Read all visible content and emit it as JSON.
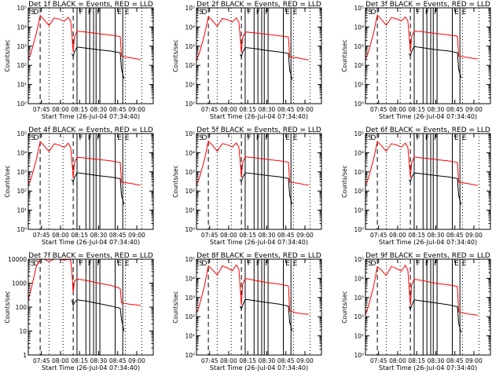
{
  "figure": {
    "xlabel": "Start Time (26-Jul-04 07:34:40)",
    "ylabel": "Counts/sec"
  },
  "chart_data": [
    {
      "type": "line",
      "title": "Det 1f BLACK = Events, RED = LLD",
      "ylim": [
        1,
        100000
      ],
      "ytick_style": "exp",
      "xticks": [
        "07:45",
        "08:00",
        "08:15",
        "08:30",
        "08:45",
        "09:00"
      ],
      "xlim": [
        "07:34:40",
        "09:13:00"
      ],
      "series": [
        {
          "color": "#ff0000",
          "x": [
            "07:34:40",
            "07:37",
            "07:41",
            "07:44",
            "07:47",
            "07:51",
            "07:55",
            "07:59",
            "08:03",
            "08:06",
            "08:08",
            "08:09",
            "08:10",
            "08:11",
            "08:13",
            "08:20",
            "08:30",
            "08:40",
            "08:47",
            "08:48",
            "08:55",
            "09:03"
          ],
          "y": [
            200,
            500,
            4500,
            40000,
            25000,
            12000,
            30000,
            26000,
            20000,
            32000,
            20000,
            4000,
            500,
            3000,
            6000,
            5500,
            4500,
            3800,
            3200,
            300,
            250,
            200
          ]
        },
        {
          "color": "#000000",
          "x": [
            "08:09",
            "08:10",
            "08:11",
            "08:13",
            "08:20",
            "08:30",
            "08:40",
            "08:47",
            "08:48",
            "08:50"
          ],
          "y": [
            400,
            300,
            500,
            900,
            800,
            650,
            550,
            450,
            60,
            20
          ]
        }
      ]
    },
    {
      "type": "line",
      "title": "Det 2f BLACK = Events, RED = LLD",
      "ylim": [
        1,
        100000
      ],
      "ytick_style": "exp",
      "xticks": [
        "07:45",
        "08:00",
        "08:15",
        "08:30",
        "08:45",
        "09:00"
      ],
      "xlim": [
        "07:34:40",
        "09:13:00"
      ],
      "series": [
        {
          "color": "#ff0000",
          "x": [
            "07:34:40",
            "07:37",
            "07:41",
            "07:44",
            "07:47",
            "07:51",
            "07:55",
            "07:59",
            "08:03",
            "08:06",
            "08:08",
            "08:09",
            "08:10",
            "08:11",
            "08:13",
            "08:20",
            "08:30",
            "08:40",
            "08:47",
            "08:48",
            "08:55",
            "09:03"
          ],
          "y": [
            180,
            450,
            4000,
            35000,
            22000,
            11000,
            28000,
            24000,
            18000,
            30000,
            18000,
            3500,
            450,
            2800,
            5500,
            5000,
            4200,
            3500,
            3000,
            280,
            240,
            190
          ]
        },
        {
          "color": "#000000",
          "x": [
            "08:09",
            "08:10",
            "08:11",
            "08:13",
            "08:20",
            "08:30",
            "08:40",
            "08:47",
            "08:48",
            "08:50"
          ],
          "y": [
            380,
            280,
            480,
            850,
            750,
            600,
            500,
            420,
            55,
            18
          ]
        }
      ]
    },
    {
      "type": "line",
      "title": "Det 3f BLACK = Events, RED = LLD",
      "ylim": [
        1,
        100000
      ],
      "ytick_style": "exp",
      "xticks": [
        "07:45",
        "08:00",
        "08:15",
        "08:30",
        "08:45",
        "09:00"
      ],
      "xlim": [
        "07:34:40",
        "09:13:00"
      ],
      "series": [
        {
          "color": "#ff0000",
          "x": [
            "07:34:40",
            "07:37",
            "07:41",
            "07:44",
            "07:47",
            "07:51",
            "07:55",
            "07:59",
            "08:03",
            "08:06",
            "08:08",
            "08:09",
            "08:10",
            "08:11",
            "08:13",
            "08:20",
            "08:30",
            "08:40",
            "08:47",
            "08:48",
            "08:55",
            "09:03"
          ],
          "y": [
            200,
            500,
            4500,
            42000,
            26000,
            12500,
            31000,
            27000,
            21000,
            33000,
            21000,
            4000,
            500,
            3000,
            6200,
            5600,
            4600,
            3900,
            3300,
            300,
            260,
            210
          ]
        },
        {
          "color": "#000000",
          "x": [
            "08:09",
            "08:10",
            "08:11",
            "08:13",
            "08:20",
            "08:30",
            "08:40",
            "08:47",
            "08:48",
            "08:50"
          ],
          "y": [
            420,
            310,
            520,
            950,
            820,
            660,
            560,
            460,
            62,
            22
          ]
        }
      ]
    },
    {
      "type": "line",
      "title": "Det 4f BLACK = Events, RED = LLD",
      "ylim": [
        1,
        100000
      ],
      "ytick_style": "exp",
      "xticks": [
        "07:45",
        "08:00",
        "08:15",
        "08:30",
        "08:45",
        "09:00"
      ],
      "xlim": [
        "07:34:40",
        "09:13:00"
      ],
      "series": [
        {
          "color": "#ff0000",
          "x": [
            "07:34:40",
            "07:37",
            "07:41",
            "07:44",
            "07:47",
            "07:51",
            "07:55",
            "07:59",
            "08:03",
            "08:06",
            "08:08",
            "08:09",
            "08:10",
            "08:11",
            "08:13",
            "08:20",
            "08:30",
            "08:40",
            "08:47",
            "08:48",
            "08:55",
            "09:03"
          ],
          "y": [
            190,
            480,
            4200,
            38000,
            24000,
            11500,
            29000,
            25000,
            19000,
            31000,
            19000,
            3800,
            480,
            2900,
            5800,
            5200,
            4400,
            3700,
            3100,
            290,
            250,
            200
          ]
        },
        {
          "color": "#000000",
          "x": [
            "08:09",
            "08:10",
            "08:11",
            "08:13",
            "08:20",
            "08:30",
            "08:40",
            "08:47",
            "08:48",
            "08:50"
          ],
          "y": [
            400,
            300,
            500,
            900,
            780,
            630,
            530,
            440,
            58,
            20
          ]
        }
      ]
    },
    {
      "type": "line",
      "title": "Det 5f BLACK = Events, RED = LLD",
      "ylim": [
        1,
        100000
      ],
      "ytick_style": "exp",
      "xticks": [
        "07:45",
        "08:00",
        "08:15",
        "08:30",
        "08:45",
        "09:00"
      ],
      "xlim": [
        "07:34:40",
        "09:13:00"
      ],
      "series": [
        {
          "color": "#ff0000",
          "x": [
            "07:34:40",
            "07:37",
            "07:41",
            "07:44",
            "07:47",
            "07:51",
            "07:55",
            "07:59",
            "08:03",
            "08:06",
            "08:08",
            "08:09",
            "08:10",
            "08:11",
            "08:13",
            "08:20",
            "08:30",
            "08:40",
            "08:47",
            "08:48",
            "08:55",
            "09:03"
          ],
          "y": [
            200,
            500,
            4400,
            40000,
            25000,
            12000,
            30000,
            26000,
            20000,
            32000,
            20000,
            4000,
            500,
            3000,
            6000,
            5500,
            4500,
            3800,
            3200,
            300,
            250,
            200
          ]
        },
        {
          "color": "#000000",
          "x": [
            "08:09",
            "08:10",
            "08:11",
            "08:13",
            "08:20",
            "08:30",
            "08:40",
            "08:47",
            "08:48",
            "08:50"
          ],
          "y": [
            410,
            300,
            500,
            900,
            800,
            650,
            550,
            450,
            60,
            20
          ]
        }
      ]
    },
    {
      "type": "line",
      "title": "Det 6f BLACK = Events, RED = LLD",
      "ylim": [
        1,
        100000
      ],
      "ytick_style": "exp",
      "xticks": [
        "07:45",
        "08:00",
        "08:15",
        "08:30",
        "08:45",
        "09:00"
      ],
      "xlim": [
        "07:34:40",
        "09:13:00"
      ],
      "series": [
        {
          "color": "#ff0000",
          "x": [
            "07:34:40",
            "07:37",
            "07:41",
            "07:44",
            "07:47",
            "07:51",
            "07:55",
            "07:59",
            "08:03",
            "08:06",
            "08:08",
            "08:09",
            "08:10",
            "08:11",
            "08:13",
            "08:20",
            "08:30",
            "08:40",
            "08:47",
            "08:48",
            "08:55",
            "09:03"
          ],
          "y": [
            190,
            470,
            4300,
            39000,
            24500,
            11800,
            29500,
            25500,
            19500,
            31500,
            19500,
            3900,
            490,
            2950,
            5900,
            5300,
            4400,
            3700,
            3100,
            290,
            245,
            195
          ]
        },
        {
          "color": "#000000",
          "x": [
            "08:09",
            "08:10",
            "08:11",
            "08:13",
            "08:20",
            "08:30",
            "08:40",
            "08:47",
            "08:48",
            "08:50"
          ],
          "y": [
            400,
            300,
            500,
            880,
            780,
            640,
            540,
            445,
            58,
            19
          ]
        }
      ]
    },
    {
      "type": "line",
      "title": "Det 7f BLACK = Events, RED = LLD",
      "ylim": [
        1,
        10000
      ],
      "ytick_style": "plain",
      "xticks": [
        "07:45",
        "08:00",
        "08:15",
        "08:30",
        "08:45",
        "09:00"
      ],
      "xlim": [
        "07:34:40",
        "09:13:00"
      ],
      "series": [
        {
          "color": "#ff0000",
          "x": [
            "07:34:40",
            "07:37",
            "07:41",
            "07:44",
            "07:47",
            "07:51",
            "07:55",
            "07:59",
            "08:03",
            "08:06",
            "08:08",
            "08:09",
            "08:10",
            "08:11",
            "08:13",
            "08:20",
            "08:30",
            "08:40",
            "08:47",
            "08:48",
            "08:55",
            "09:03"
          ],
          "y": [
            200,
            600,
            5000,
            10000,
            10000,
            8000,
            10000,
            10000,
            9000,
            10000,
            9000,
            3000,
            400,
            1200,
            1500,
            1300,
            1000,
            800,
            600,
            150,
            130,
            120
          ]
        },
        {
          "color": "#000000",
          "x": [
            "08:09",
            "08:10",
            "08:11",
            "08:13",
            "08:20",
            "08:30",
            "08:40",
            "08:47",
            "08:48",
            "08:50"
          ],
          "y": [
            200,
            120,
            150,
            200,
            180,
            140,
            110,
            90,
            30,
            10
          ]
        }
      ]
    },
    {
      "type": "line",
      "title": "Det 8f BLACK = Events, RED = LLD",
      "ylim": [
        1,
        100000
      ],
      "ytick_style": "exp",
      "xticks": [
        "07:45",
        "08:00",
        "08:15",
        "08:30",
        "08:45",
        "09:00"
      ],
      "xlim": [
        "07:34:40",
        "09:13:00"
      ],
      "series": [
        {
          "color": "#ff0000",
          "x": [
            "07:34:40",
            "07:37",
            "07:41",
            "07:44",
            "07:47",
            "07:51",
            "07:55",
            "07:59",
            "08:03",
            "08:06",
            "08:08",
            "08:09",
            "08:10",
            "08:11",
            "08:13",
            "08:20",
            "08:30",
            "08:40",
            "08:47",
            "08:48",
            "08:55",
            "09:03"
          ],
          "y": [
            150,
            400,
            4000,
            45000,
            30000,
            15000,
            45000,
            35000,
            25000,
            50000,
            30000,
            4000,
            400,
            5000,
            10000,
            8000,
            6000,
            5000,
            4000,
            200,
            150,
            130
          ]
        },
        {
          "color": "#000000",
          "x": [
            "08:09",
            "08:10",
            "08:11",
            "08:13",
            "08:20",
            "08:30",
            "08:40",
            "08:47",
            "08:48",
            "08:50"
          ],
          "y": [
            350,
            250,
            400,
            800,
            700,
            550,
            450,
            350,
            50,
            18
          ]
        }
      ]
    },
    {
      "type": "line",
      "title": "Det 9f BLACK = Events, RED = LLD",
      "ylim": [
        1,
        100000
      ],
      "ytick_style": "exp",
      "xticks": [
        "07:45",
        "08:00",
        "08:15",
        "08:30",
        "08:45",
        "09:00"
      ],
      "xlim": [
        "07:34:40",
        "09:13:00"
      ],
      "series": [
        {
          "color": "#ff0000",
          "x": [
            "07:34:40",
            "07:37",
            "07:41",
            "07:44",
            "07:47",
            "07:51",
            "07:55",
            "07:59",
            "08:03",
            "08:06",
            "08:08",
            "08:09",
            "08:10",
            "08:11",
            "08:13",
            "08:20",
            "08:30",
            "08:40",
            "08:47",
            "08:48",
            "08:55",
            "09:03"
          ],
          "y": [
            120,
            350,
            3500,
            40000,
            28000,
            14000,
            42000,
            33000,
            24000,
            48000,
            28000,
            3800,
            380,
            4500,
            9000,
            7500,
            5500,
            4600,
            3800,
            180,
            140,
            120
          ]
        },
        {
          "color": "#000000",
          "x": [
            "08:09",
            "08:10",
            "08:11",
            "08:13",
            "08:20",
            "08:30",
            "08:40",
            "08:47",
            "08:48",
            "08:50"
          ],
          "y": [
            330,
            240,
            380,
            750,
            650,
            520,
            420,
            330,
            45,
            15
          ]
        }
      ]
    }
  ],
  "markers": {
    "dashed": [
      "07:44",
      "08:10"
    ],
    "dotted": [
      "07:51",
      "08:02",
      "08:51",
      "09:04"
    ],
    "solid": [
      "08:13",
      "08:20",
      "08:23",
      "08:26",
      "08:28",
      "08:31",
      "08:43",
      "08:49"
    ],
    "flags": [
      {
        "t": "07:36",
        "text": "S"
      },
      {
        "t": "07:38",
        "text": "O"
      },
      {
        "t": "08:14",
        "text": "F"
      },
      {
        "t": "08:21",
        "text": "F"
      },
      {
        "t": "08:28",
        "text": "F"
      },
      {
        "t": "08:44",
        "text": "E"
      },
      {
        "t": "08:50",
        "text": "E"
      }
    ]
  }
}
